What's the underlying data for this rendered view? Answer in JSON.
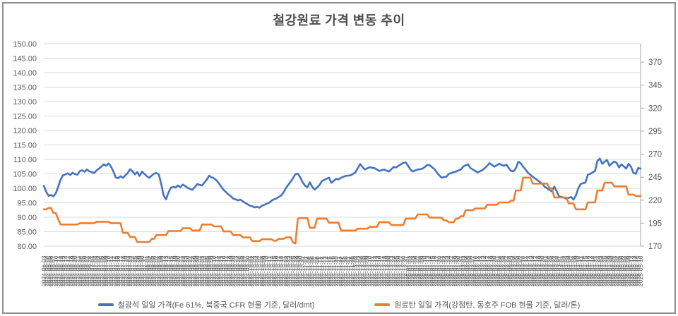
{
  "colors": {
    "iron_ore_blue": "#4472C4",
    "coking_coal_orange": "#ED7D31",
    "gridline": "#D9D9D9",
    "axis_line": "#A6A6A6",
    "axis_text": "#595959",
    "title_text": "#4D4D4D",
    "border": "#8F8F8F"
  },
  "chart_data": {
    "type": "line",
    "title": "철강원료 가격 변동 추이",
    "grid": true,
    "legend_position": "bottom",
    "left_axis": {
      "min": 80,
      "max": 150,
      "step": 5,
      "ticks": [
        {
          "value": 150,
          "label": "150.00"
        },
        {
          "value": 145,
          "label": "145.00"
        },
        {
          "value": 140,
          "label": "140.00"
        },
        {
          "value": 135,
          "label": "135.00"
        },
        {
          "value": 130,
          "label": "130.00"
        },
        {
          "value": 125,
          "label": "125.00"
        },
        {
          "value": 120,
          "label": "120.00"
        },
        {
          "value": 115,
          "label": "115.00"
        },
        {
          "value": 110,
          "label": "110.00"
        },
        {
          "value": 105,
          "label": "105.00"
        },
        {
          "value": 100,
          "label": "100.00"
        },
        {
          "value": 95,
          "label": "95.00"
        },
        {
          "value": 90,
          "label": "90.00"
        },
        {
          "value": 85,
          "label": "85.00"
        },
        {
          "value": 80,
          "label": "80.00"
        }
      ]
    },
    "right_axis": {
      "min": 170,
      "max": 390,
      "step": 25,
      "ticks": [
        {
          "value": 370,
          "label": "370"
        },
        {
          "value": 345,
          "label": "345"
        },
        {
          "value": 320,
          "label": "320"
        },
        {
          "value": 295,
          "label": "295"
        },
        {
          "value": 270,
          "label": "270"
        },
        {
          "value": 245,
          "label": "245"
        },
        {
          "value": 220,
          "label": "220"
        },
        {
          "value": 195,
          "label": "195"
        },
        {
          "value": 170,
          "label": "170"
        }
      ]
    },
    "x": [
      "2024-06-03",
      "2024-06-04",
      "2024-06-05",
      "2024-06-06",
      "2024-06-07",
      "2024-06-10",
      "2024-06-11",
      "2024-06-12",
      "2024-06-13",
      "2024-06-14",
      "2024-06-17",
      "2024-06-18",
      "2024-06-19",
      "2024-06-20",
      "2024-06-21",
      "2024-06-24",
      "2024-06-25",
      "2024-06-26",
      "2024-06-27",
      "2024-06-28",
      "2024-07-01",
      "2024-07-02",
      "2024-07-03",
      "2024-07-04",
      "2024-07-05",
      "2024-07-08",
      "2024-07-09",
      "2024-07-10",
      "2024-07-11",
      "2024-07-12",
      "2024-07-15",
      "2024-07-16",
      "2024-07-17",
      "2024-07-18",
      "2024-07-19",
      "2024-07-22",
      "2024-07-23",
      "2024-07-24",
      "2024-07-25",
      "2024-07-26",
      "2024-07-29",
      "2024-07-30",
      "2024-07-31",
      "2024-08-01",
      "2024-08-02",
      "2024-08-05",
      "2024-08-06",
      "2024-08-07",
      "2024-08-08",
      "2024-08-09",
      "2024-08-12",
      "2024-08-13",
      "2024-08-14",
      "2024-08-15",
      "2024-08-16",
      "2024-08-19",
      "2024-08-20",
      "2024-08-21",
      "2024-08-22",
      "2024-08-23",
      "2024-08-26",
      "2024-08-27",
      "2024-08-28",
      "2024-08-29",
      "2024-08-30",
      "2024-09-02",
      "2024-09-03",
      "2024-09-04",
      "2024-09-05",
      "2024-09-06",
      "2024-09-09",
      "2024-09-10",
      "2024-09-11",
      "2024-09-12",
      "2024-09-13",
      "2024-09-16",
      "2024-09-17",
      "2024-09-18",
      "2024-09-19",
      "2024-09-20",
      "2024-09-23",
      "2024-09-24",
      "2024-09-25",
      "2024-09-26",
      "2024-09-27",
      "2024-09-30",
      "2024-10-01",
      "2024-10-02",
      "2024-10-03",
      "2024-10-04",
      "2024-10-07",
      "2024-10-08",
      "2024-10-09",
      "2024-10-10",
      "2024-10-11",
      "2024-10-14",
      "2024-10-15",
      "2024-10-16",
      "2024-10-17",
      "2024-10-18",
      "2024-10-21",
      "2024-10-22",
      "2024-10-23",
      "2024-10-24",
      "2024-10-25",
      "2024-10-28",
      "2024-10-29",
      "2024-10-30",
      "2024-10-31",
      "2024-11-01",
      "2024-11-04",
      "2024-11-05",
      "2024-11-06",
      "2024-11-07",
      "2024-11-08",
      "2024-11-11",
      "2024-11-12",
      "2024-11-13",
      "2024-11-14",
      "2024-11-15",
      "2024-11-18",
      "2024-11-19",
      "2024-11-20",
      "2024-11-21",
      "2024-11-22",
      "2024-11-25",
      "2024-11-26",
      "2024-11-27",
      "2024-11-28",
      "2024-11-29",
      "2024-12-02",
      "2024-12-03",
      "2024-12-04",
      "2024-12-05",
      "2024-12-06",
      "2024-12-09",
      "2024-12-10",
      "2024-12-11",
      "2024-12-12",
      "2024-12-13",
      "2024-12-16",
      "2024-12-17",
      "2024-12-18",
      "2024-12-19",
      "2024-12-20",
      "2024-12-23",
      "2024-12-24",
      "2024-12-25",
      "2024-12-26",
      "2024-12-27",
      "2024-12-30",
      "2024-12-31",
      "2025-01-01",
      "2025-01-02",
      "2025-01-03",
      "2025-01-06",
      "2025-01-07",
      "2025-01-08",
      "2025-01-09",
      "2025-01-10",
      "2025-01-13",
      "2025-01-14",
      "2025-01-15",
      "2025-01-16",
      "2025-01-17",
      "2025-01-20",
      "2025-01-21",
      "2025-01-22",
      "2025-01-23",
      "2025-01-24",
      "2025-01-27",
      "2025-01-28",
      "2025-01-29",
      "2025-01-30",
      "2025-01-31",
      "2025-02-03",
      "2025-02-04",
      "2025-02-05",
      "2025-02-06",
      "2025-02-07",
      "2025-02-10",
      "2025-02-11",
      "2025-02-12",
      "2025-02-13",
      "2025-02-14",
      "2025-02-17",
      "2025-02-18",
      "2025-02-19",
      "2025-02-20",
      "2025-02-21",
      "2025-02-24",
      "2025-02-25",
      "2025-02-26",
      "2025-02-27",
      "2025-02-28",
      "2025-03-03",
      "2025-03-04",
      "2025-03-05",
      "2025-03-06",
      "2025-03-07",
      "2025-03-10",
      "2025-03-11",
      "2025-03-12",
      "2025-03-13",
      "2025-03-14",
      "2025-03-17",
      "2025-03-18",
      "2025-03-19",
      "2025-03-20",
      "2025-03-21",
      "2025-03-24",
      "2025-03-25",
      "2025-03-26",
      "2025-03-27",
      "2025-03-28",
      "2025-03-31",
      "2025-04-01",
      "2025-04-02",
      "2025-04-03",
      "2025-04-04",
      "2025-04-07",
      "2025-04-08",
      "2025-04-09",
      "2025-04-10",
      "2025-04-11",
      "2025-04-14",
      "2025-04-15",
      "2025-04-16",
      "2025-04-17",
      "2025-04-18",
      "2025-04-21",
      "2025-04-22",
      "2025-04-23",
      "2025-04-24",
      "2025-04-25",
      "2025-04-28",
      "2025-04-29",
      "2025-04-30",
      "2025-05-01",
      "2025-05-02",
      "2025-05-05",
      "2025-05-06",
      "2025-05-07",
      "2025-05-08",
      "2025-05-09",
      "2025-05-12",
      "2025-05-13",
      "2025-05-14",
      "2025-05-15",
      "2025-05-16"
    ],
    "series": [
      {
        "name": "철광석 일일 가격(Fe 61%, 북중국 CFR 현물 기준, 달러/dmt)",
        "axis": "left",
        "color": "#4472C4",
        "values": [
          100.9,
          98.8,
          97.4,
          97.7,
          97.2,
          98.3,
          100.5,
          103,
          104.5,
          104.8,
          105.2,
          104.6,
          105.4,
          104.9,
          104.7,
          105.9,
          106.3,
          105.7,
          106.5,
          105.9,
          105.6,
          105.3,
          106.2,
          106.8,
          107.5,
          108.3,
          107.8,
          108.6,
          107.6,
          105.9,
          103.8,
          103.5,
          104.2,
          103.6,
          104.5,
          105.3,
          106.6,
          105.9,
          104.8,
          105.6,
          104.3,
          105.8,
          105,
          104.2,
          103.6,
          104.4,
          105.1,
          105.3,
          104.8,
          101.5,
          97.5,
          96.2,
          98.5,
          100.2,
          100.5,
          100.3,
          101,
          100.4,
          101.3,
          100.8,
          100.2,
          99.8,
          99.5,
          100.4,
          101.5,
          101.2,
          101,
          102,
          103,
          104.4,
          103.8,
          103.5,
          102.8,
          101.8,
          100.6,
          99.5,
          98.7,
          97.9,
          97.3,
          96.5,
          96.2,
          95.8,
          96.1,
          95.5,
          95,
          94.5,
          94,
          93.8,
          93.4,
          93.6,
          93.3,
          94,
          94.3,
          94.7,
          95,
          95.7,
          96.2,
          96.5,
          97,
          97.5,
          98.6,
          100.1,
          101.2,
          102.3,
          103.5,
          104.9,
          105.1,
          103.8,
          102.1,
          100.9,
          100.4,
          102.1,
          100.5,
          99.6,
          100.3,
          101.1,
          102.5,
          102.9,
          103.3,
          103.7,
          101.9,
          102.6,
          103.3,
          103.1,
          103.6,
          104,
          104.3,
          104.4,
          104.5,
          105,
          105.5,
          107,
          108.4,
          107.4,
          106.5,
          106.9,
          107.3,
          107.1,
          107,
          106.5,
          106,
          106.3,
          106.5,
          106.1,
          105.8,
          106.6,
          107.4,
          107.2,
          107.8,
          108.3,
          108.8,
          109,
          107.8,
          106.5,
          105.8,
          106.2,
          106.5,
          106.6,
          106.8,
          107.4,
          108.1,
          108,
          107.3,
          106.6,
          105.5,
          104.5,
          103.7,
          103.9,
          104,
          105,
          105.3,
          105.6,
          105.8,
          106.2,
          106.5,
          107.5,
          108,
          108.3,
          107,
          106.5,
          106,
          105.5,
          105.9,
          106.3,
          107,
          107.8,
          108.7,
          108.1,
          107.5,
          108,
          108.5,
          108.1,
          107.8,
          108.2,
          107,
          106,
          105.9,
          107,
          109.2,
          108.7,
          107.5,
          106.5,
          105.4,
          104.7,
          104,
          103.4,
          102.8,
          102.2,
          101.6,
          100.5,
          100,
          99.5,
          98.9,
          100.6,
          99,
          97.2,
          97,
          96.8,
          96.4,
          96.7,
          97,
          96.1,
          97.5,
          100,
          101.5,
          101.8,
          102,
          104.7,
          105,
          105.5,
          106,
          109.5,
          110.3,
          108.5,
          109.2,
          109.8,
          107.8,
          108.6,
          109.3,
          108.8,
          107.2,
          108.3,
          107.6,
          106.8,
          108.5,
          107.5,
          105.4,
          105,
          107,
          106.8
        ]
      },
      {
        "name": "원료탄 일일 가격(강점탄, 동호주 FOB 현물 기준, 달러/톤)",
        "axis": "right",
        "color": "#ED7D31",
        "values": [
          210,
          210,
          211.5,
          211.5,
          206,
          206,
          199,
          193.5,
          193.5,
          193.5,
          193.5,
          193.5,
          193.5,
          193.5,
          193.5,
          195,
          195,
          195,
          195,
          195,
          195,
          195,
          196.5,
          196.5,
          196.5,
          196.5,
          196.5,
          196.5,
          195,
          195,
          195,
          195,
          195,
          184.5,
          184.5,
          184.5,
          180,
          180,
          180,
          174.5,
          174.5,
          174.5,
          174.5,
          174.5,
          174.5,
          178,
          178,
          182,
          182,
          182,
          182,
          182,
          186.5,
          186.5,
          186.5,
          186.5,
          186.5,
          186.5,
          189.5,
          189.5,
          189.5,
          189.5,
          187,
          187,
          187,
          187,
          193.5,
          193.5,
          193.5,
          193.5,
          193.5,
          191.5,
          191.5,
          191.5,
          191.5,
          186,
          186,
          186,
          186,
          182,
          182,
          182,
          182,
          179.5,
          179.5,
          179.5,
          179.5,
          175.5,
          175.5,
          175.5,
          175.5,
          177.5,
          177.5,
          177.5,
          177.5,
          177.5,
          176,
          176,
          178,
          178,
          178,
          179.5,
          179.5,
          179.5,
          174,
          173,
          200,
          200.5,
          200.5,
          200.5,
          200.5,
          190,
          190,
          190,
          200,
          200,
          200,
          200,
          200,
          195.5,
          195.5,
          195.5,
          195.5,
          195.5,
          187,
          187,
          187,
          187,
          187,
          187,
          187,
          189,
          189,
          189,
          189,
          189,
          191,
          191,
          191,
          191,
          196,
          196,
          196,
          196,
          196,
          193,
          193,
          193,
          193,
          193,
          193,
          200,
          200,
          200,
          200,
          200,
          204.5,
          204.5,
          204.5,
          204.5,
          204.5,
          201,
          201,
          201,
          201,
          201,
          201,
          198,
          198,
          196,
          196,
          196,
          200,
          200,
          202.5,
          202.5,
          209,
          209,
          209,
          209,
          211,
          211,
          211,
          211,
          211,
          215,
          215,
          215,
          215,
          215,
          217.5,
          217.5,
          217.5,
          217.5,
          217.5,
          219.5,
          219.5,
          230.5,
          230.5,
          230.5,
          244.5,
          244.5,
          244.5,
          244.5,
          238,
          238,
          238,
          238,
          238,
          238,
          238,
          233,
          233,
          223,
          223,
          223,
          223,
          223,
          223,
          216.5,
          216.5,
          216.5,
          210,
          210,
          210,
          210,
          210,
          217.5,
          217.5,
          217.5,
          217.5,
          230.5,
          230.5,
          230.5,
          239,
          239,
          239,
          239,
          235,
          235,
          235,
          235,
          235,
          235,
          226,
          226,
          226,
          224.5,
          224.5,
          224.5
        ]
      }
    ]
  }
}
